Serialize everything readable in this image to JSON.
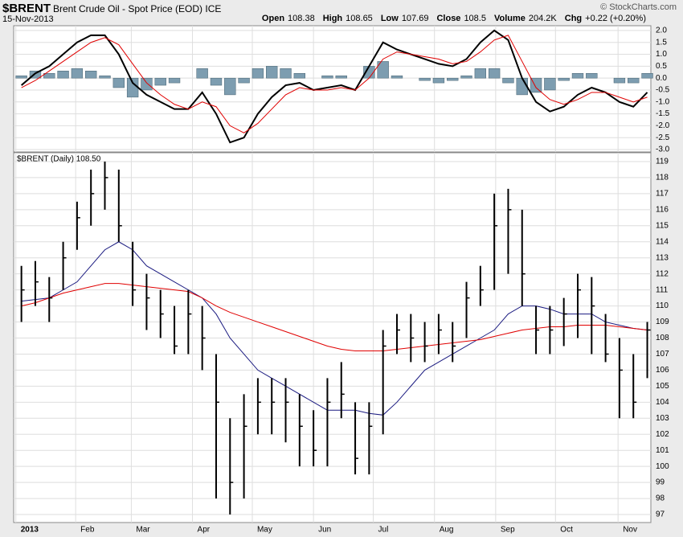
{
  "header": {
    "symbol": "$BRENT",
    "name": "Brent Crude Oil - Spot Price (EOD)",
    "exchange": "ICE",
    "date": "15-Nov-2013",
    "quote": [
      {
        "label": "Open",
        "value": 108.38
      },
      {
        "label": "High",
        "value": 108.65
      },
      {
        "label": "Low",
        "value": 107.69
      },
      {
        "label": "Close",
        "value": 108.5
      },
      {
        "label": "Volume",
        "value": "204.2K"
      },
      {
        "label": "Chg",
        "value": "+0.22 (+0.20%)"
      }
    ],
    "watermark": "© StockCharts.com"
  },
  "chart_data": [
    {
      "type": "macd",
      "xlim": [
        -0.5,
        45.2
      ],
      "ylim": [
        -3.1,
        2.2
      ],
      "yticks": [
        {
          "value": 2,
          "label": "2.0"
        },
        1.5,
        {
          "value": 1,
          "label": "1.0"
        },
        0.5,
        {
          "value": 0,
          "label": "0.0"
        },
        -0.5,
        {
          "value": -1,
          "label": "-1.0"
        },
        -1.5,
        {
          "value": -2,
          "label": "-2.0"
        },
        -2.5,
        {
          "value": -3,
          "label": "-3.0"
        }
      ],
      "grid": true,
      "series": [
        {
          "color": "#000000",
          "values": [
            -0.3,
            0.2,
            0.5,
            1.0,
            1.5,
            1.8,
            1.8,
            1.0,
            -0.2,
            -0.7,
            -1.0,
            -1.3,
            -1.3,
            -0.6,
            -1.5,
            -2.7,
            -2.5,
            -1.5,
            -0.8,
            -0.3,
            -0.2,
            -0.5,
            -0.4,
            -0.3,
            -0.5,
            0.5,
            1.5,
            1.2,
            1.0,
            0.8,
            0.6,
            0.5,
            0.8,
            1.5,
            2.0,
            1.6,
            0.0,
            -1.0,
            -1.4,
            -1.2,
            -0.7,
            -0.4,
            -0.6,
            -1.0,
            -1.2,
            -0.6
          ]
        },
        {
          "color": "#e00000",
          "values": [
            -0.4,
            -0.1,
            0.3,
            0.7,
            1.1,
            1.5,
            1.7,
            1.4,
            0.6,
            -0.2,
            -0.7,
            -1.1,
            -1.3,
            -1.0,
            -1.2,
            -2.0,
            -2.3,
            -1.9,
            -1.3,
            -0.7,
            -0.4,
            -0.5,
            -0.5,
            -0.4,
            -0.5,
            0.0,
            0.8,
            1.1,
            1.0,
            0.9,
            0.8,
            0.6,
            0.7,
            1.1,
            1.6,
            1.8,
            0.7,
            -0.4,
            -0.9,
            -1.1,
            -0.9,
            -0.6,
            -0.6,
            -0.8,
            -1.0,
            -0.8
          ]
        }
      ],
      "histogram": {
        "color": "#7d9db0",
        "values": [
          0.1,
          0.3,
          0.2,
          0.3,
          0.4,
          0.3,
          0.1,
          -0.4,
          -0.8,
          -0.5,
          -0.3,
          -0.2,
          0,
          0.4,
          -0.3,
          -0.7,
          -0.2,
          0.4,
          0.5,
          0.4,
          0.2,
          0,
          0.1,
          0.1,
          0,
          0.5,
          0.7,
          0.1,
          0,
          -0.1,
          -0.2,
          -0.1,
          0.1,
          0.4,
          0.4,
          -0.2,
          -0.7,
          -0.6,
          -0.5,
          -0.1,
          0.2,
          0.2,
          0,
          -0.2,
          -0.2,
          0.2
        ]
      }
    },
    {
      "type": "ohlc",
      "label": "$BRENT (Daily) 108.50",
      "xlim": [
        -0.5,
        45.2
      ],
      "ylim": [
        96.5,
        119.55
      ],
      "yticks": [
        97,
        98,
        99,
        100,
        101,
        102,
        103,
        104,
        105,
        106,
        107,
        108,
        109,
        110,
        111,
        112,
        113,
        114,
        115,
        116,
        117,
        118,
        119
      ],
      "xticks": [
        {
          "value": -0.4,
          "label": "2013"
        },
        {
          "value": 3.9,
          "label": "Feb"
        },
        {
          "value": 7.9,
          "label": "Mar"
        },
        {
          "value": 12.3,
          "label": "Apr"
        },
        {
          "value": 16.6,
          "label": "May"
        },
        {
          "value": 21,
          "label": "Jun"
        },
        {
          "value": 25.3,
          "label": "Jul"
        },
        {
          "value": 29.7,
          "label": "Aug"
        },
        {
          "value": 34.1,
          "label": "Sep"
        },
        {
          "value": 38.4,
          "label": "Oct"
        },
        {
          "value": 42.9,
          "label": "Nov"
        }
      ],
      "grid": true,
      "color": "#000000",
      "high": [
        112.5,
        112.8,
        111.8,
        114,
        116.5,
        118.5,
        119,
        118.5,
        114,
        112,
        111,
        110,
        111,
        110,
        107,
        103,
        104.5,
        105.5,
        105.5,
        105.5,
        104.5,
        103.5,
        105.5,
        106.5,
        104,
        104,
        108.5,
        109.5,
        109.5,
        109,
        109.5,
        109,
        111.5,
        112.5,
        117,
        117.3,
        116,
        110,
        110,
        110.5,
        112,
        111.8,
        109.5,
        108,
        107,
        109
      ],
      "low": [
        109,
        110,
        109,
        111,
        113.5,
        115,
        116,
        114,
        110,
        108.5,
        108,
        107,
        107,
        106,
        98,
        97,
        98,
        102,
        102,
        101.5,
        100,
        100,
        100,
        103,
        99.5,
        99.5,
        102,
        107,
        106.5,
        106.5,
        107,
        106.5,
        108,
        110,
        111,
        112,
        110,
        107,
        107,
        107.5,
        108,
        107,
        106.5,
        103,
        103,
        105.5
      ],
      "close": [
        111,
        111.5,
        110.5,
        113,
        115.5,
        117,
        118,
        115,
        111,
        110.5,
        109.5,
        107.5,
        109.5,
        108,
        104,
        99,
        102.5,
        104,
        104,
        104,
        102.5,
        101,
        104,
        104.5,
        100.5,
        102.5,
        107.5,
        108.5,
        108,
        107.5,
        108.5,
        107.5,
        110.5,
        111,
        115,
        116,
        112,
        108.5,
        108.5,
        109.5,
        111,
        110,
        107,
        106,
        104,
        108.5
      ],
      "series": [
        {
          "color": "#1a1a80",
          "values": [
            110.3,
            110.4,
            110.5,
            111,
            111.5,
            112.5,
            113.5,
            114,
            113.5,
            112.5,
            112,
            111.5,
            111,
            110.5,
            109.5,
            108,
            107,
            106,
            105.5,
            105,
            104.5,
            104,
            103.5,
            103.5,
            103.5,
            103.3,
            103.2,
            104,
            105,
            106,
            106.5,
            107,
            107.5,
            108,
            108.5,
            109.5,
            110,
            110,
            109.8,
            109.5,
            109.5,
            109.5,
            109,
            108.8,
            108.6,
            108.5
          ]
        },
        {
          "color": "#e00000",
          "values": [
            110,
            110.2,
            110.5,
            110.8,
            111,
            111.2,
            111.4,
            111.4,
            111.3,
            111.2,
            111.1,
            111,
            110.9,
            110.5,
            110,
            109.6,
            109.3,
            109,
            108.7,
            108.4,
            108.1,
            107.8,
            107.5,
            107.3,
            107.2,
            107.2,
            107.2,
            107.3,
            107.4,
            107.5,
            107.6,
            107.7,
            107.8,
            107.9,
            108.1,
            108.3,
            108.5,
            108.6,
            108.7,
            108.7,
            108.8,
            108.8,
            108.8,
            108.7,
            108.6,
            108.5
          ]
        }
      ]
    }
  ]
}
